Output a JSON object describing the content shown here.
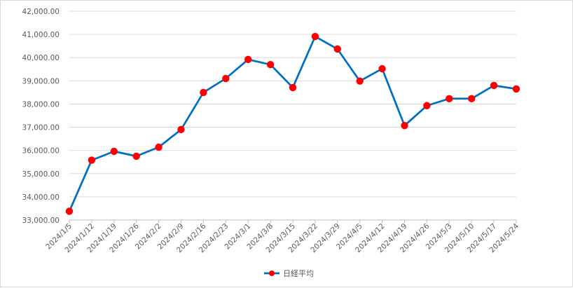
{
  "chart_data": {
    "type": "line",
    "categories": [
      "2024/1/5",
      "2024/1/12",
      "2024/1/19",
      "2024/1/26",
      "2024/2/2",
      "2024/2/9",
      "2024/2/16",
      "2024/2/23",
      "2024/3/1",
      "2024/3/8",
      "2024/3/15",
      "2024/3/22",
      "2024/3/29",
      "2024/4/5",
      "2024/4/12",
      "2024/4/19",
      "2024/4/26",
      "2024/5/3",
      "2024/5/10",
      "2024/5/17",
      "2024/5/24"
    ],
    "series": [
      {
        "name": "日経平均",
        "values": [
          33380,
          35580,
          35960,
          35750,
          36140,
          36900,
          38500,
          39100,
          39920,
          39700,
          38710,
          40910,
          40370,
          38990,
          39520,
          37070,
          37930,
          38230,
          38230,
          38800,
          38650
        ],
        "color": "#0070C0",
        "marker_color": "#FF0000"
      }
    ],
    "ylim": [
      33000,
      42000
    ],
    "yticks": [
      33000,
      34000,
      35000,
      36000,
      37000,
      38000,
      39000,
      40000,
      41000,
      42000
    ],
    "ytick_labels": [
      "33,000.00",
      "34,000.00",
      "35,000.00",
      "36,000.00",
      "37,000.00",
      "38,000.00",
      "39,000.00",
      "40,000.00",
      "41,000.00",
      "42,000.00"
    ],
    "grid": true,
    "legend_position": "bottom"
  }
}
